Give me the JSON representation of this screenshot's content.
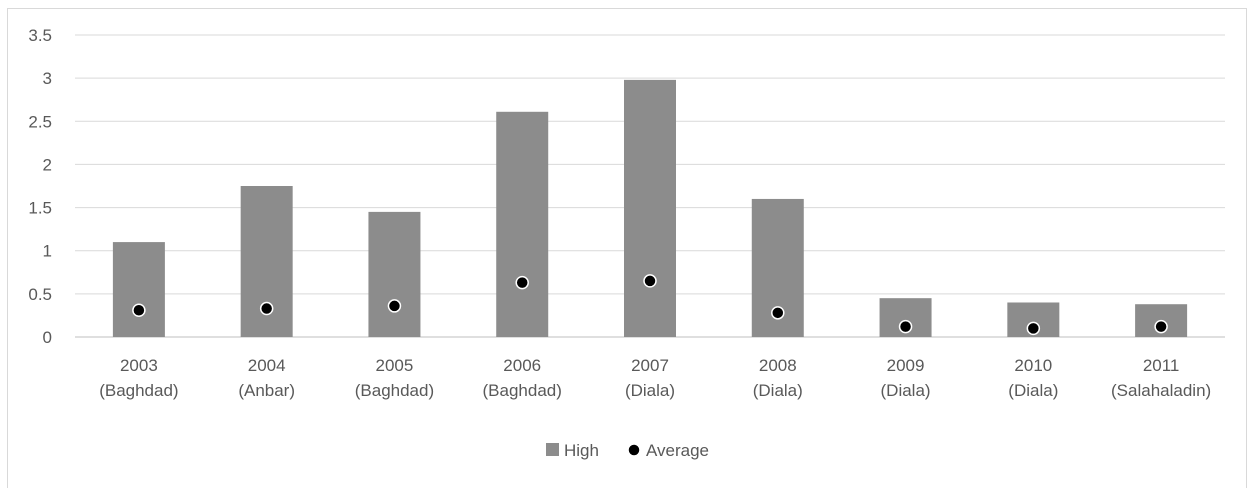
{
  "chart_data": {
    "type": "bar",
    "categories": [
      [
        "2003",
        "(Baghdad)"
      ],
      [
        "2004",
        "(Anbar)"
      ],
      [
        "2005",
        "(Baghdad)"
      ],
      [
        "2006",
        "(Baghdad)"
      ],
      [
        "2007",
        "(Diala)"
      ],
      [
        "2008",
        "(Diala)"
      ],
      [
        "2009",
        "(Diala)"
      ],
      [
        "2010",
        "(Diala)"
      ],
      [
        "2011",
        "(Salahaladin)"
      ]
    ],
    "series": [
      {
        "name": "High",
        "kind": "bar",
        "color": "#8c8c8c",
        "values": [
          1.1,
          1.75,
          1.45,
          2.61,
          2.98,
          1.6,
          0.45,
          0.4,
          0.38
        ]
      },
      {
        "name": "Average",
        "kind": "marker",
        "color": "#000000",
        "values": [
          0.31,
          0.33,
          0.36,
          0.63,
          0.65,
          0.28,
          0.12,
          0.1,
          0.12
        ]
      }
    ],
    "yticks": [
      "0",
      "0.5",
      "1",
      "1.5",
      "2",
      "2.5",
      "3",
      "3.5"
    ],
    "ylim": [
      0,
      3.5
    ],
    "grid": true,
    "legend_position": "bottom",
    "title": "",
    "xlabel": "",
    "ylabel": ""
  }
}
